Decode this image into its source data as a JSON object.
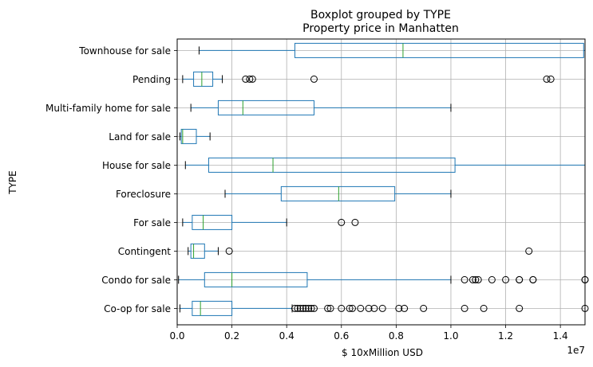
{
  "chart_data": {
    "type": "box",
    "orientation": "horizontal",
    "suptitle": "Boxplot grouped by TYPE",
    "title": "Property price in Manhatten",
    "xlabel": "$ 10xMillion USD",
    "ylabel": "TYPE",
    "x_offset_label": "1e7",
    "xlim": [
      0,
      1.49
    ],
    "x_ticks": [
      0.0,
      0.2,
      0.4,
      0.6,
      0.8,
      1.0,
      1.2,
      1.4
    ],
    "x_tick_labels": [
      "0.0",
      "0.2",
      "0.4",
      "0.6",
      "0.8",
      "1.0",
      "1.2",
      "1.4"
    ],
    "grid": true,
    "colors": {
      "box": "#1f77b4",
      "median": "#2ca02c",
      "flier": "#000000",
      "grid": "#b0b0b0"
    },
    "categories": [
      "Co-op for sale",
      "Condo for sale",
      "Contingent",
      "For sale",
      "Foreclosure",
      "House for sale",
      "Land for sale",
      "Multi-family home for sale",
      "Pending",
      "Townhouse for sale"
    ],
    "boxes": [
      {
        "whislo": 0.01,
        "q1": 0.055,
        "med": 0.085,
        "q3": 0.2,
        "whishi": 0.42,
        "fliers": [
          0.43,
          0.44,
          0.45,
          0.46,
          0.47,
          0.48,
          0.49,
          0.5,
          0.55,
          0.56,
          0.6,
          0.63,
          0.64,
          0.67,
          0.7,
          0.72,
          0.75,
          0.81,
          0.83,
          0.9,
          1.05,
          1.12,
          1.25,
          1.49
        ]
      },
      {
        "whislo": 0.005,
        "q1": 0.1,
        "med": 0.2,
        "q3": 0.475,
        "whishi": 1.0,
        "fliers": [
          1.05,
          1.08,
          1.09,
          1.1,
          1.15,
          1.2,
          1.25,
          1.25,
          1.3,
          1.3,
          1.49,
          1.49
        ]
      },
      {
        "whislo": 0.04,
        "q1": 0.05,
        "med": 0.06,
        "q3": 0.1,
        "whishi": 0.15,
        "fliers": [
          0.19,
          1.285
        ]
      },
      {
        "whislo": 0.02,
        "q1": 0.055,
        "med": 0.095,
        "q3": 0.2,
        "whishi": 0.4,
        "fliers": [
          0.6,
          0.65
        ]
      },
      {
        "whislo": 0.175,
        "q1": 0.38,
        "med": 0.59,
        "q3": 0.795,
        "whishi": 1.0,
        "fliers": []
      },
      {
        "whislo": 0.03,
        "q1": 0.115,
        "med": 0.35,
        "q3": 1.015,
        "whishi": 1.49,
        "fliers": []
      },
      {
        "whislo": 0.01,
        "q1": 0.015,
        "med": 0.02,
        "q3": 0.07,
        "whishi": 0.12,
        "fliers": []
      },
      {
        "whislo": 0.05,
        "q1": 0.15,
        "med": 0.24,
        "q3": 0.5,
        "whishi": 1.0,
        "fliers": []
      },
      {
        "whislo": 0.02,
        "q1": 0.06,
        "med": 0.09,
        "q3": 0.13,
        "whishi": 0.165,
        "fliers": [
          0.25,
          0.265,
          0.275,
          0.5,
          1.35,
          1.365
        ]
      },
      {
        "whislo": 0.08,
        "q1": 0.43,
        "med": 0.825,
        "q3": 1.485,
        "whishi": 1.49,
        "fliers": []
      }
    ]
  }
}
